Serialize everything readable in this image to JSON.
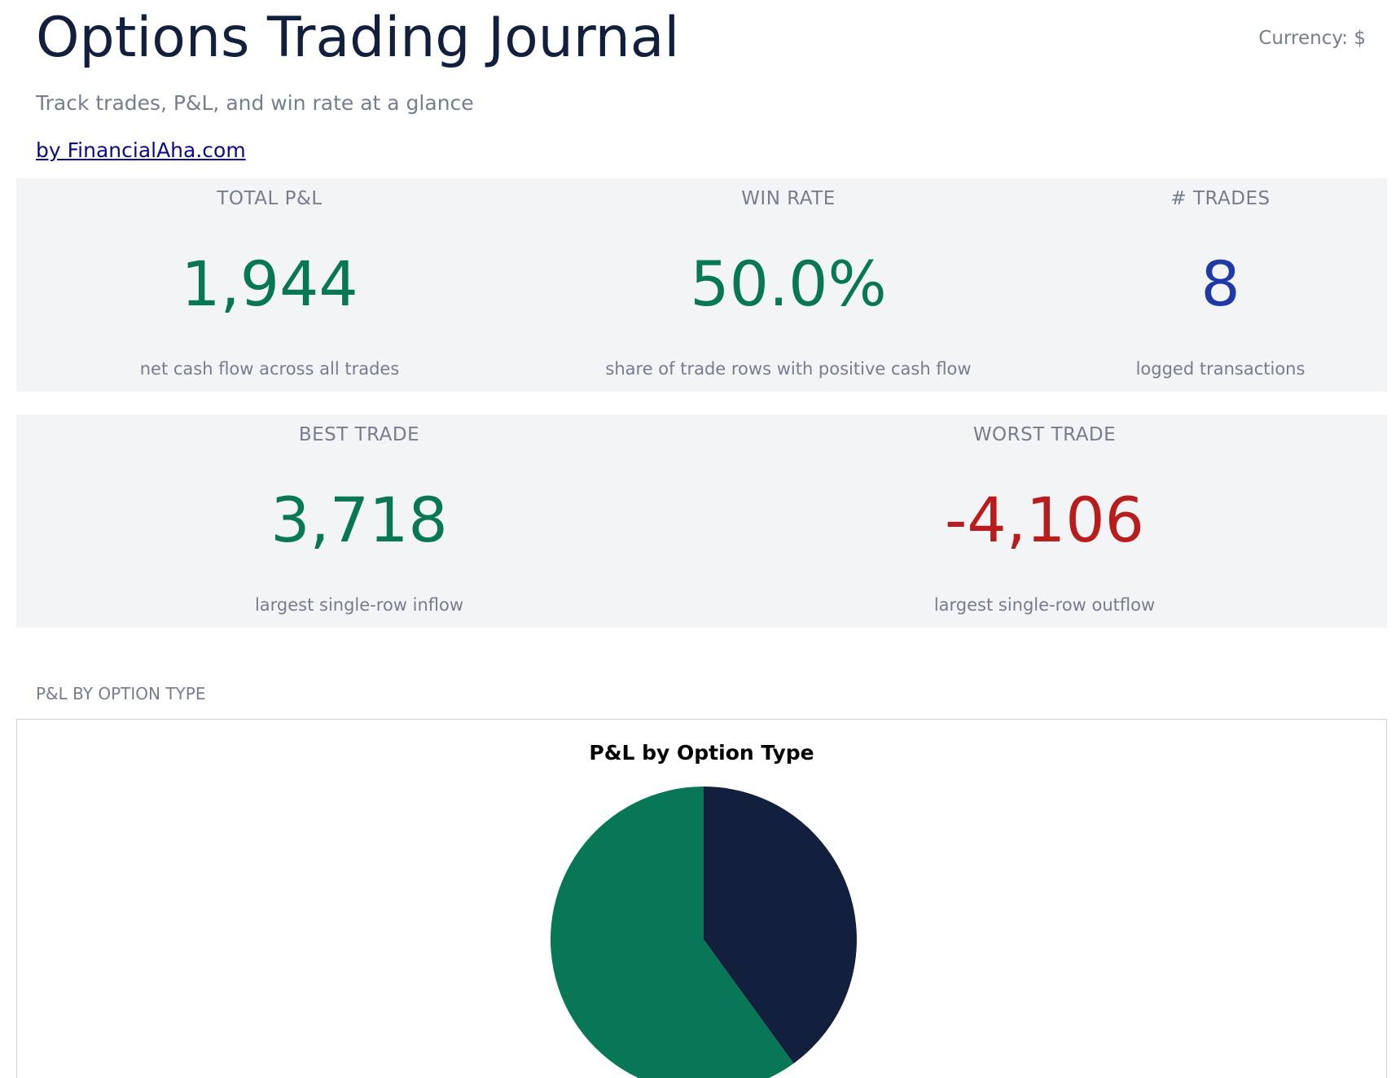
{
  "header": {
    "title": "Options Trading Journal",
    "currency": "Currency: $",
    "subtitle": "Track trades, P&L, and win rate at a glance",
    "byline": "by FinancialAha.com"
  },
  "kpis_row1": [
    {
      "label": "TOTAL P&L",
      "value": "1,944",
      "note": "net cash flow across all trades",
      "color": "#087755"
    },
    {
      "label": "WIN RATE",
      "value": "50.0%",
      "note": "share of trade rows with positive cash flow",
      "color": "#087755"
    },
    {
      "label": "# TRADES",
      "value": "8",
      "note": "logged transactions",
      "color": "#1f3aa8"
    }
  ],
  "kpis_row2": [
    {
      "label": "BEST TRADE",
      "value": "3,718",
      "note": "largest single-row inflow",
      "color": "#087755"
    },
    {
      "label": "WORST TRADE",
      "value": "-4,106",
      "note": "largest single-row outflow",
      "color": "#b91c1c"
    }
  ],
  "section": {
    "label": "P&L BY OPTION TYPE"
  },
  "chart_data": {
    "type": "pie",
    "title": "P&L by Option Type",
    "slices": [
      {
        "fraction": 0.4,
        "color": "#13203d"
      },
      {
        "fraction": 0.6,
        "color": "#087755"
      }
    ],
    "start_angle_deg": -90,
    "legend": "none"
  }
}
